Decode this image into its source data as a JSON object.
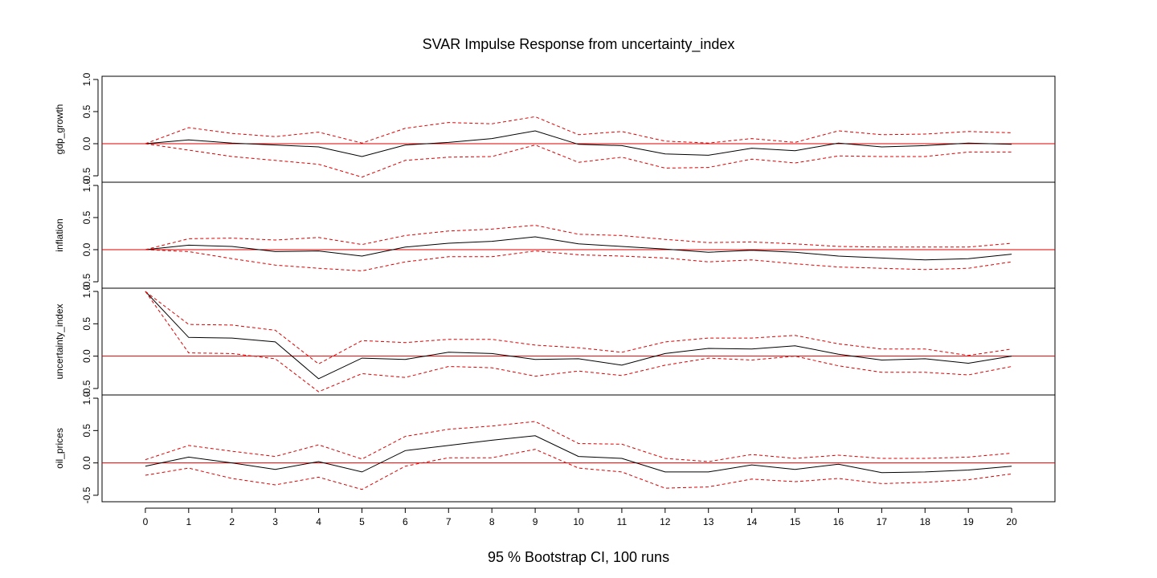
{
  "chart_data": {
    "type": "line",
    "title": "SVAR Impulse Response from uncertainty_index",
    "xlabel": "95 % Bootstrap CI,  100 runs",
    "x": [
      0,
      1,
      2,
      3,
      4,
      5,
      6,
      7,
      8,
      9,
      10,
      11,
      12,
      13,
      14,
      15,
      16,
      17,
      18,
      19,
      20
    ],
    "x_tick_labels": [
      "0",
      "1",
      "2",
      "3",
      "4",
      "5",
      "6",
      "7",
      "8",
      "9",
      "10",
      "11",
      "12",
      "13",
      "14",
      "15",
      "16",
      "17",
      "18",
      "19",
      "20"
    ],
    "y_tick_labels": [
      "-0.5",
      "0.0",
      "0.5",
      "1.0"
    ],
    "colors": {
      "response": "#000000",
      "ci": "#e00000",
      "zero_line": "#e00000"
    },
    "panels": [
      {
        "ylabel": "gdp_growth",
        "ylim": [
          -0.6,
          1.05
        ],
        "series": [
          {
            "role": "response",
            "values": [
              0.0,
              0.06,
              0.01,
              -0.02,
              -0.05,
              -0.2,
              -0.02,
              0.02,
              0.08,
              0.2,
              -0.01,
              -0.03,
              -0.16,
              -0.18,
              -0.07,
              -0.11,
              0.01,
              -0.05,
              -0.03,
              0.01,
              -0.01
            ]
          },
          {
            "role": "upper",
            "values": [
              0.0,
              0.25,
              0.16,
              0.11,
              0.18,
              0.01,
              0.24,
              0.33,
              0.31,
              0.42,
              0.14,
              0.19,
              0.04,
              0.01,
              0.08,
              0.02,
              0.2,
              0.14,
              0.15,
              0.19,
              0.17
            ]
          },
          {
            "role": "lower",
            "values": [
              0.0,
              -0.1,
              -0.2,
              -0.26,
              -0.32,
              -0.52,
              -0.26,
              -0.21,
              -0.2,
              -0.02,
              -0.29,
              -0.21,
              -0.38,
              -0.37,
              -0.24,
              -0.3,
              -0.19,
              -0.2,
              -0.2,
              -0.13,
              -0.13
            ]
          }
        ]
      },
      {
        "ylabel": "inflation",
        "ylim": [
          -0.6,
          1.05
        ],
        "series": [
          {
            "role": "response",
            "values": [
              0.0,
              0.07,
              0.05,
              -0.03,
              -0.02,
              -0.1,
              0.04,
              0.1,
              0.13,
              0.2,
              0.09,
              0.05,
              0.01,
              -0.04,
              -0.01,
              -0.04,
              -0.1,
              -0.13,
              -0.16,
              -0.14,
              -0.07
            ]
          },
          {
            "role": "upper",
            "values": [
              0.0,
              0.17,
              0.18,
              0.15,
              0.19,
              0.08,
              0.22,
              0.29,
              0.32,
              0.38,
              0.24,
              0.22,
              0.16,
              0.11,
              0.12,
              0.09,
              0.05,
              0.04,
              0.04,
              0.04,
              0.1
            ]
          },
          {
            "role": "lower",
            "values": [
              0.0,
              -0.03,
              -0.14,
              -0.24,
              -0.29,
              -0.33,
              -0.19,
              -0.11,
              -0.11,
              -0.02,
              -0.08,
              -0.1,
              -0.13,
              -0.19,
              -0.16,
              -0.22,
              -0.27,
              -0.29,
              -0.31,
              -0.29,
              -0.19
            ]
          }
        ]
      },
      {
        "ylabel": "uncertainty_index",
        "ylim": [
          -0.6,
          1.05
        ],
        "series": [
          {
            "role": "response",
            "values": [
              1.0,
              0.29,
              0.28,
              0.22,
              -0.35,
              -0.03,
              -0.05,
              0.06,
              0.04,
              -0.05,
              -0.04,
              -0.14,
              0.04,
              0.12,
              0.11,
              0.16,
              0.03,
              -0.06,
              -0.04,
              -0.11,
              0.0
            ]
          },
          {
            "role": "upper",
            "values": [
              1.0,
              0.49,
              0.48,
              0.4,
              -0.12,
              0.24,
              0.21,
              0.26,
              0.26,
              0.17,
              0.13,
              0.06,
              0.22,
              0.28,
              0.28,
              0.32,
              0.19,
              0.11,
              0.11,
              0.01,
              0.11
            ]
          },
          {
            "role": "lower",
            "values": [
              1.0,
              0.05,
              0.04,
              -0.04,
              -0.55,
              -0.27,
              -0.33,
              -0.16,
              -0.18,
              -0.31,
              -0.23,
              -0.3,
              -0.14,
              -0.03,
              -0.06,
              0.0,
              -0.15,
              -0.25,
              -0.25,
              -0.29,
              -0.16
            ]
          }
        ]
      },
      {
        "ylabel": "oil_prices",
        "ylim": [
          -0.6,
          1.05
        ],
        "series": [
          {
            "role": "response",
            "values": [
              -0.05,
              0.09,
              0.0,
              -0.1,
              0.02,
              -0.14,
              0.19,
              0.27,
              0.35,
              0.42,
              0.1,
              0.07,
              -0.14,
              -0.14,
              -0.03,
              -0.1,
              -0.02,
              -0.15,
              -0.14,
              -0.11,
              -0.05
            ]
          },
          {
            "role": "upper",
            "values": [
              0.05,
              0.27,
              0.18,
              0.1,
              0.28,
              0.06,
              0.41,
              0.52,
              0.57,
              0.64,
              0.3,
              0.29,
              0.07,
              0.02,
              0.13,
              0.07,
              0.12,
              0.07,
              0.07,
              0.09,
              0.15
            ]
          },
          {
            "role": "lower",
            "values": [
              -0.19,
              -0.08,
              -0.24,
              -0.34,
              -0.22,
              -0.41,
              -0.05,
              0.08,
              0.08,
              0.21,
              -0.08,
              -0.14,
              -0.39,
              -0.37,
              -0.25,
              -0.29,
              -0.24,
              -0.32,
              -0.3,
              -0.26,
              -0.17
            ]
          }
        ]
      }
    ]
  }
}
